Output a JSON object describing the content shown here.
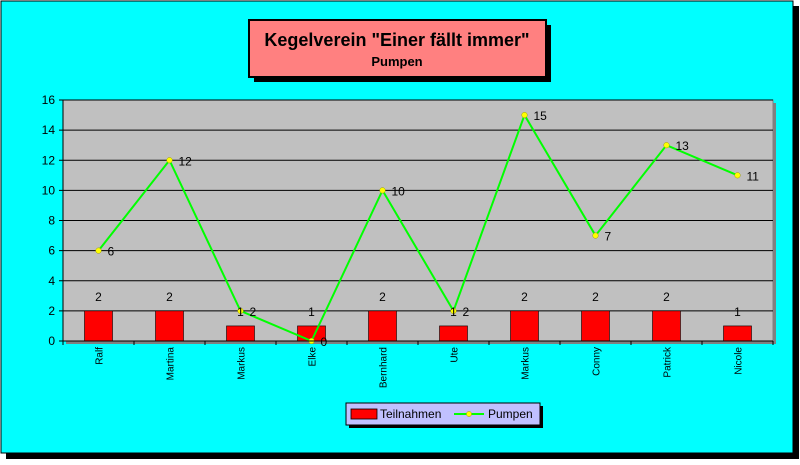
{
  "chart_data": {
    "type": "bar",
    "title": "Kegelverein \"Einer fällt immer\"",
    "subtitle": "Pumpen",
    "categories": [
      "Ralf",
      "Martina",
      "Markus",
      "Elke",
      "Bernhard",
      "Ute",
      "Markus",
      "Conny",
      "Patrick",
      "Nicole"
    ],
    "series": [
      {
        "name": "Teilnahmen",
        "type": "bar",
        "values": [
          2,
          2,
          1,
          1,
          2,
          1,
          2,
          2,
          2,
          1
        ]
      },
      {
        "name": "Pumpen",
        "type": "line",
        "values": [
          6,
          12,
          2,
          0,
          10,
          2,
          15,
          7,
          13,
          11
        ]
      }
    ],
    "ylim": [
      0,
      16
    ],
    "yticks": [
      "0",
      "2",
      "4",
      "6",
      "8",
      "10",
      "12",
      "14",
      "16"
    ],
    "grid": true,
    "legend": "bottom-center",
    "colors": {
      "background": "#00ffff",
      "plot_area": "#c0c0c0",
      "title_box": "#ff8080",
      "bar": "#ff0000",
      "line": "#00ff00",
      "marker": "#ffff00",
      "legend_box": "#c0c0ff"
    }
  }
}
